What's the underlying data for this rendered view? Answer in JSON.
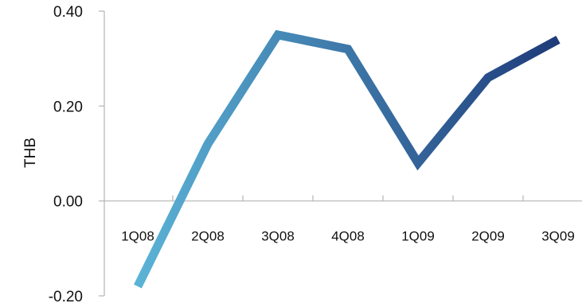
{
  "chart_data": {
    "type": "line",
    "categories": [
      "1Q08",
      "2Q08",
      "3Q08",
      "4Q08",
      "1Q09",
      "2Q09",
      "3Q09"
    ],
    "series": [
      {
        "values": [
          -0.18,
          0.12,
          0.35,
          0.32,
          0.08,
          0.26,
          0.34
        ],
        "color_start": "#5bb3d6",
        "color_end": "#1f3b7a"
      }
    ],
    "title": "",
    "xlabel": "",
    "ylabel": "THB",
    "ylim": [
      -0.2,
      0.4
    ],
    "y_ticks": [
      {
        "value": 0.4,
        "label": "0.40"
      },
      {
        "value": 0.2,
        "label": "0.20"
      },
      {
        "value": 0.0,
        "label": "0.00"
      },
      {
        "value": -0.2,
        "label": "-0.20"
      }
    ],
    "grid": false,
    "legend": "none",
    "axis_color": "#b5b5b5"
  }
}
